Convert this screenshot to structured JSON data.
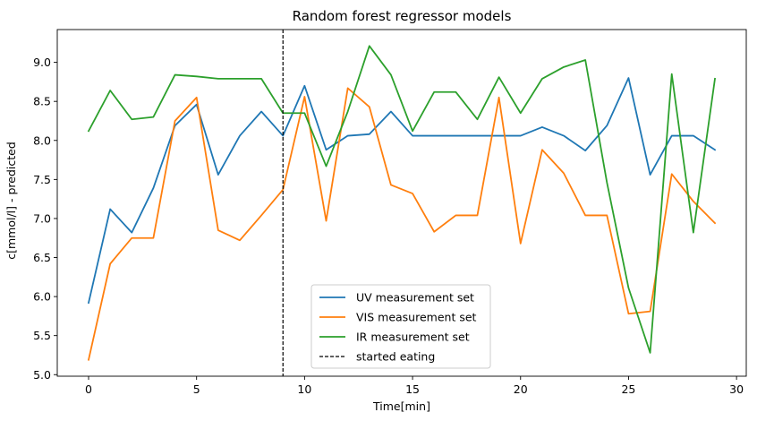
{
  "chart_data": {
    "type": "line",
    "title": "Random forest regressor models",
    "xlabel": "Time[min]",
    "ylabel": "c[mmol/l] - predicted",
    "xlim": [
      -1.45,
      30.45
    ],
    "ylim": [
      4.98,
      9.42
    ],
    "xticks": [
      0,
      5,
      10,
      15,
      20,
      25,
      30
    ],
    "xtick_labels": [
      "0",
      "5",
      "10",
      "15",
      "20",
      "25",
      "30"
    ],
    "yticks": [
      5.0,
      5.5,
      6.0,
      6.5,
      7.0,
      7.5,
      8.0,
      8.5,
      9.0
    ],
    "ytick_labels": [
      "5.0",
      "5.5",
      "6.0",
      "6.5",
      "7.0",
      "7.5",
      "8.0",
      "8.5",
      "9.0"
    ],
    "grid": false,
    "legend_position": "lower-center",
    "x": [
      0,
      1,
      2,
      3,
      4,
      5,
      6,
      7,
      8,
      9,
      10,
      11,
      12,
      13,
      14,
      15,
      16,
      17,
      18,
      19,
      20,
      21,
      22,
      23,
      24,
      25,
      26,
      27,
      28,
      29
    ],
    "series": [
      {
        "name": "UV measurement set",
        "color": "#1f77b4",
        "values": [
          5.92,
          7.12,
          6.82,
          7.39,
          8.19,
          8.46,
          7.56,
          8.06,
          8.37,
          8.06,
          8.7,
          7.88,
          8.06,
          8.08,
          8.37,
          8.06,
          8.06,
          8.06,
          8.06,
          8.06,
          8.06,
          8.17,
          8.06,
          7.87,
          8.19,
          8.8,
          7.56,
          8.06,
          8.06,
          7.88
        ]
      },
      {
        "name": "VIS measurement set",
        "color": "#ff7f0e",
        "values": [
          5.19,
          6.42,
          6.75,
          6.75,
          8.25,
          8.55,
          6.85,
          6.72,
          7.04,
          7.37,
          8.56,
          6.97,
          8.67,
          8.43,
          7.43,
          7.32,
          6.83,
          7.04,
          7.04,
          8.55,
          6.68,
          7.88,
          7.58,
          7.04,
          7.04,
          5.78,
          5.81,
          7.57,
          7.22,
          6.94
        ]
      },
      {
        "name": "IR measurement set",
        "color": "#2ca02c",
        "values": [
          8.12,
          8.64,
          8.27,
          8.3,
          8.84,
          8.82,
          8.79,
          8.79,
          8.79,
          8.35,
          8.35,
          7.67,
          8.37,
          9.21,
          8.84,
          8.12,
          8.62,
          8.62,
          8.27,
          8.81,
          8.35,
          8.79,
          8.94,
          9.03,
          7.46,
          6.11,
          5.28,
          8.85,
          6.82,
          8.79
        ]
      }
    ],
    "annotations": [
      {
        "type": "vline",
        "x": 9,
        "style": "dashed",
        "color": "#000000",
        "label": "started eating"
      }
    ]
  }
}
